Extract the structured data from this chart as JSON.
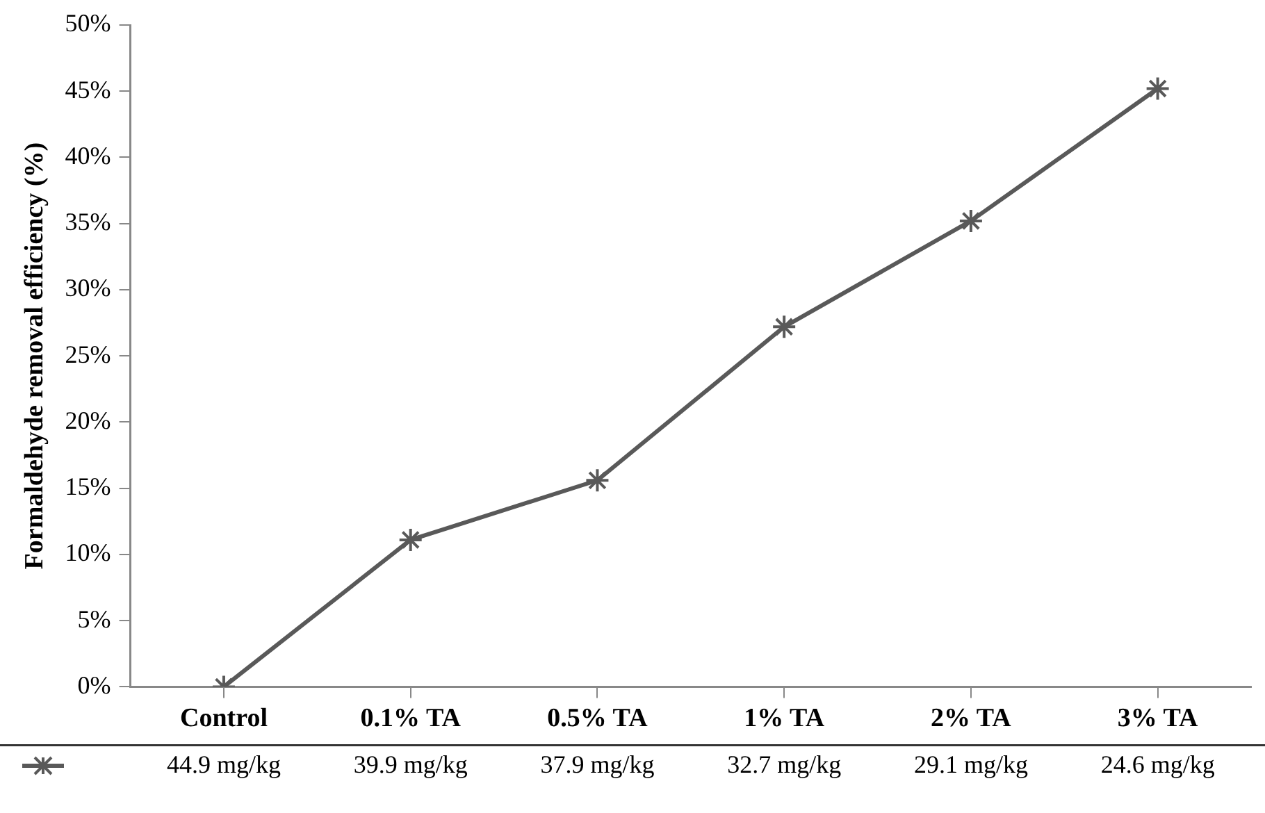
{
  "chart_data": {
    "type": "line",
    "ylabel": "Formaldehyde removal efficiency (%)",
    "categories": [
      "Control",
      "0.1% TA",
      "0.5% TA",
      "1% TA",
      "2% TA",
      "3% TA"
    ],
    "series": [
      {
        "color": "#595959",
        "values": [
          0,
          11.1,
          15.6,
          27.2,
          35.2,
          45.2
        ]
      }
    ],
    "ylim": [
      0,
      50
    ],
    "yticks": [
      {
        "value": 0,
        "label": "0%"
      },
      {
        "value": 5,
        "label": "5%"
      },
      {
        "value": 10,
        "label": "10%"
      },
      {
        "value": 15,
        "label": "15%"
      },
      {
        "value": 20,
        "label": "20%"
      },
      {
        "value": 25,
        "label": "25%"
      },
      {
        "value": 30,
        "label": "30%"
      },
      {
        "value": 35,
        "label": "35%"
      },
      {
        "value": 40,
        "label": "40%"
      },
      {
        "value": 45,
        "label": "45%"
      },
      {
        "value": 50,
        "label": "50%"
      }
    ],
    "annotations": [
      "44.9 mg/kg",
      "39.9 mg/kg",
      "37.9 mg/kg",
      "32.7 mg/kg",
      "29.1 mg/kg",
      "24.6 mg/kg"
    ],
    "marker": "cross",
    "line_style": "solid",
    "grid": false,
    "legend": false
  }
}
